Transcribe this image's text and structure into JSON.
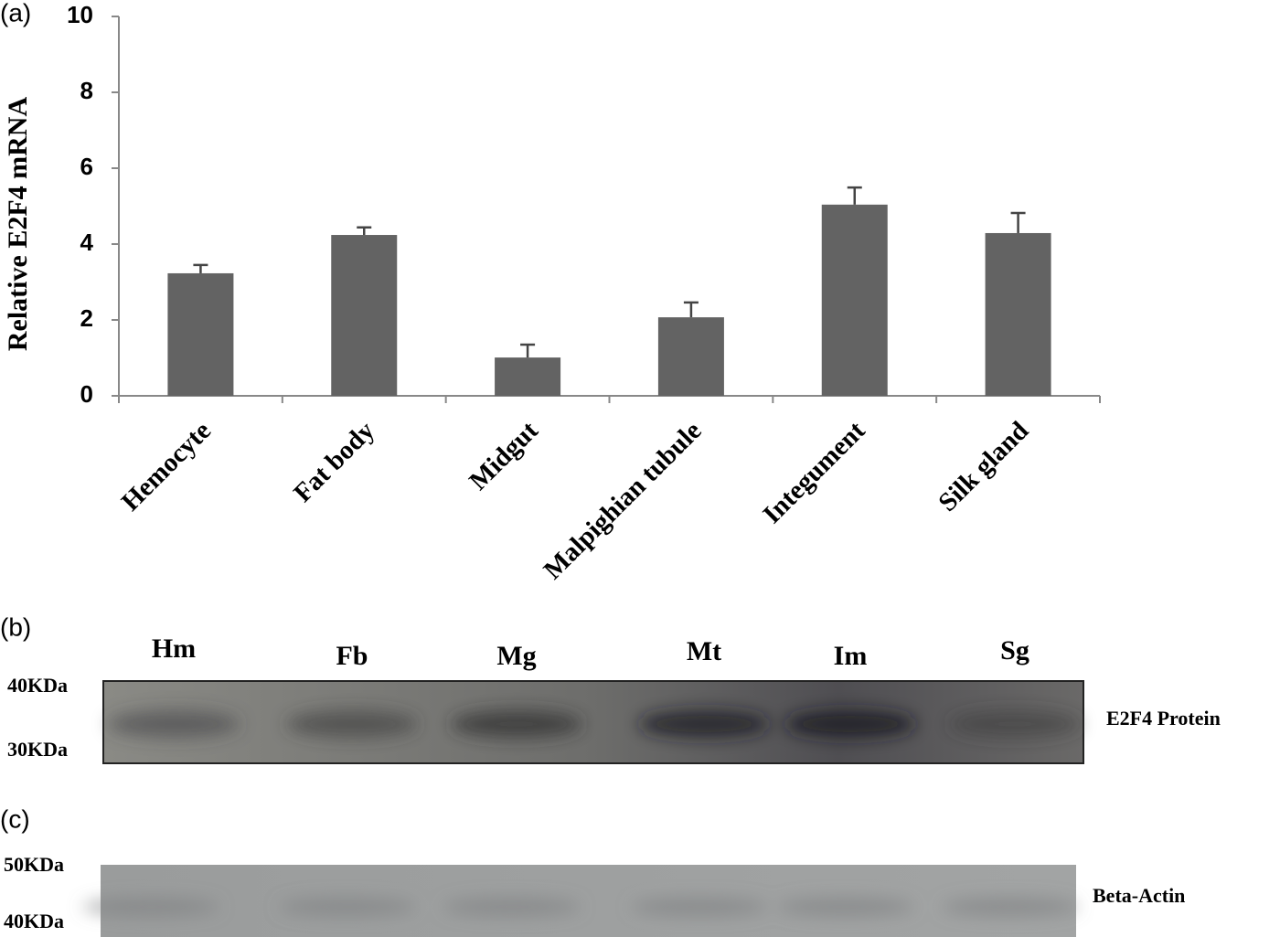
{
  "chart_data": {
    "type": "bar",
    "panel_label": "(a)",
    "y_label": "Relative E2F4 mRNA",
    "categories": [
      "Hemocyte",
      "Fat body",
      "Midgut",
      "Malpighian tubule",
      "Integument",
      "Silk gland"
    ],
    "values": [
      3.23,
      4.24,
      1.01,
      2.07,
      5.04,
      4.29
    ],
    "errors": [
      0.22,
      0.2,
      0.34,
      0.39,
      0.45,
      0.53
    ],
    "color": "#636363",
    "ylim": [
      0,
      10
    ],
    "yticks": [
      0,
      2,
      4,
      6,
      8,
      10
    ]
  },
  "blots": [
    {
      "panel_label": "(b)",
      "lanes": [
        "Hm",
        "Fb",
        "Mg",
        "Mt",
        "Im",
        "Sg"
      ],
      "markers": [
        "40KDa",
        "30KDa"
      ],
      "name": "E2F4 Protein"
    },
    {
      "panel_label": "(c)",
      "markers": [
        "50KDa",
        "40KDa"
      ],
      "name": "Beta-Actin"
    }
  ]
}
